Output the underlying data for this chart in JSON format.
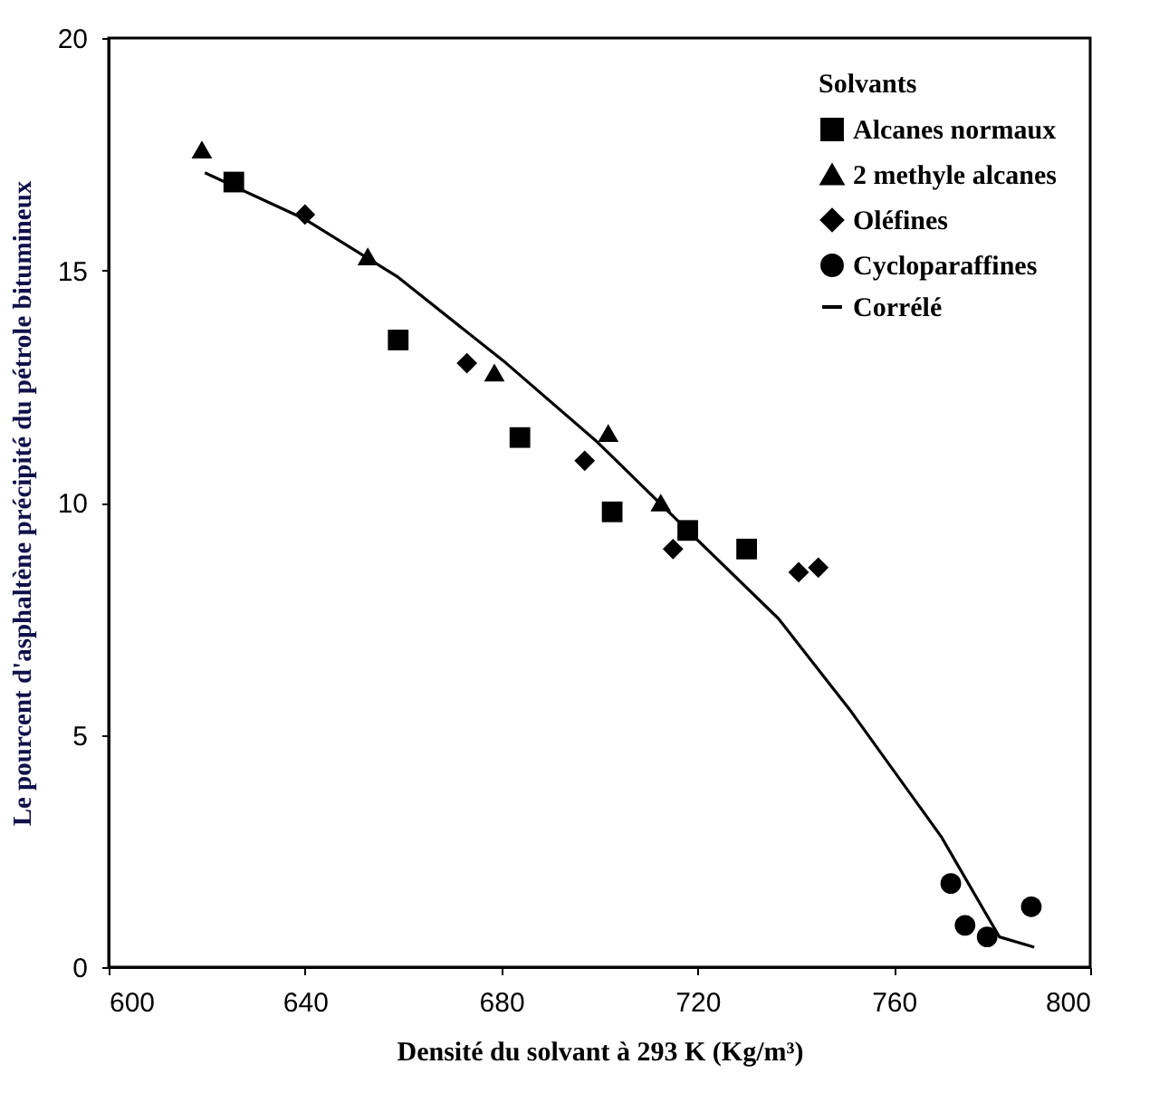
{
  "chart_data": {
    "type": "scatter",
    "xlabel": "Densité du solvant à 293 K (Kg/m³)",
    "ylabel": "Le pourcent d'asphaltène précipité du pétrole bitumineux",
    "legend_title": "Solvants",
    "legend": "top right",
    "grid": false,
    "xlim": [
      600,
      800
    ],
    "xticks": [
      600,
      640,
      680,
      720,
      760,
      800
    ],
    "ylim": [
      0,
      20
    ],
    "yticks": [
      0,
      5,
      10,
      15,
      20
    ],
    "series": [
      {
        "name": "Alcanes normaux",
        "color": "#000000",
        "marker": "square",
        "x": [
          625.5,
          659,
          683.8,
          702.6,
          718,
          730
        ],
        "values": [
          16.9,
          13.5,
          11.4,
          9.8,
          9.4,
          9.0
        ]
      },
      {
        "name": "2 methyle alcanes",
        "color": "#000000",
        "marker": "triangle",
        "x": [
          619,
          652.8,
          678.6,
          701.8,
          712.5
        ],
        "values": [
          17.6,
          15.3,
          12.8,
          11.5,
          10.0
        ]
      },
      {
        "name": "Oléfines",
        "color": "#000000",
        "marker": "diamond",
        "x": [
          640,
          673,
          697,
          715,
          740.6,
          744.6
        ],
        "values": [
          16.2,
          13.0,
          10.9,
          9.0,
          8.5,
          8.6
        ]
      },
      {
        "name": "Cycloparaffines",
        "color": "#000000",
        "marker": "circle",
        "x": [
          771.6,
          774.5,
          779,
          788
        ],
        "values": [
          1.8,
          0.9,
          0.65,
          1.3
        ]
      },
      {
        "name": "Corrélé",
        "type": "line",
        "color": "#000000",
        "marker": "none",
        "line_style": "solid",
        "x": [
          619.6,
          640,
          659,
          681,
          699.6,
          718,
          736.5,
          751.3,
          769.7,
          781.5,
          788.6
        ],
        "values": [
          17.1,
          16.1,
          14.85,
          13.0,
          11.3,
          9.4,
          7.5,
          5.5,
          2.8,
          0.65,
          0.43
        ]
      }
    ]
  }
}
